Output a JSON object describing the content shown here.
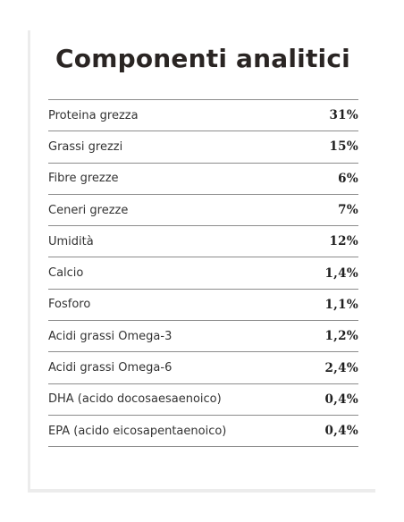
{
  "title": "Componenti analitici",
  "rows": [
    {
      "label": "Proteina grezza",
      "value": "31%"
    },
    {
      "label": "Grassi grezzi",
      "value": "15%"
    },
    {
      "label": "Fibre grezze",
      "value": "6%"
    },
    {
      "label": "Ceneri grezze",
      "value": "7%"
    },
    {
      "label": "Umidità",
      "value": "12%"
    },
    {
      "label": "Calcio",
      "value": "1,4%"
    },
    {
      "label": "Fosforo",
      "value": "1,1%"
    },
    {
      "label": "Acidi grassi Omega-3",
      "value": "1,2%"
    },
    {
      "label": "Acidi grassi Omega-6",
      "value": "2,4%"
    },
    {
      "label": "DHA (acido docosaesaenoico)",
      "value": "0,4%"
    },
    {
      "label": "EPA (acido eicosapentaenoico)",
      "value": "0,4%"
    }
  ]
}
